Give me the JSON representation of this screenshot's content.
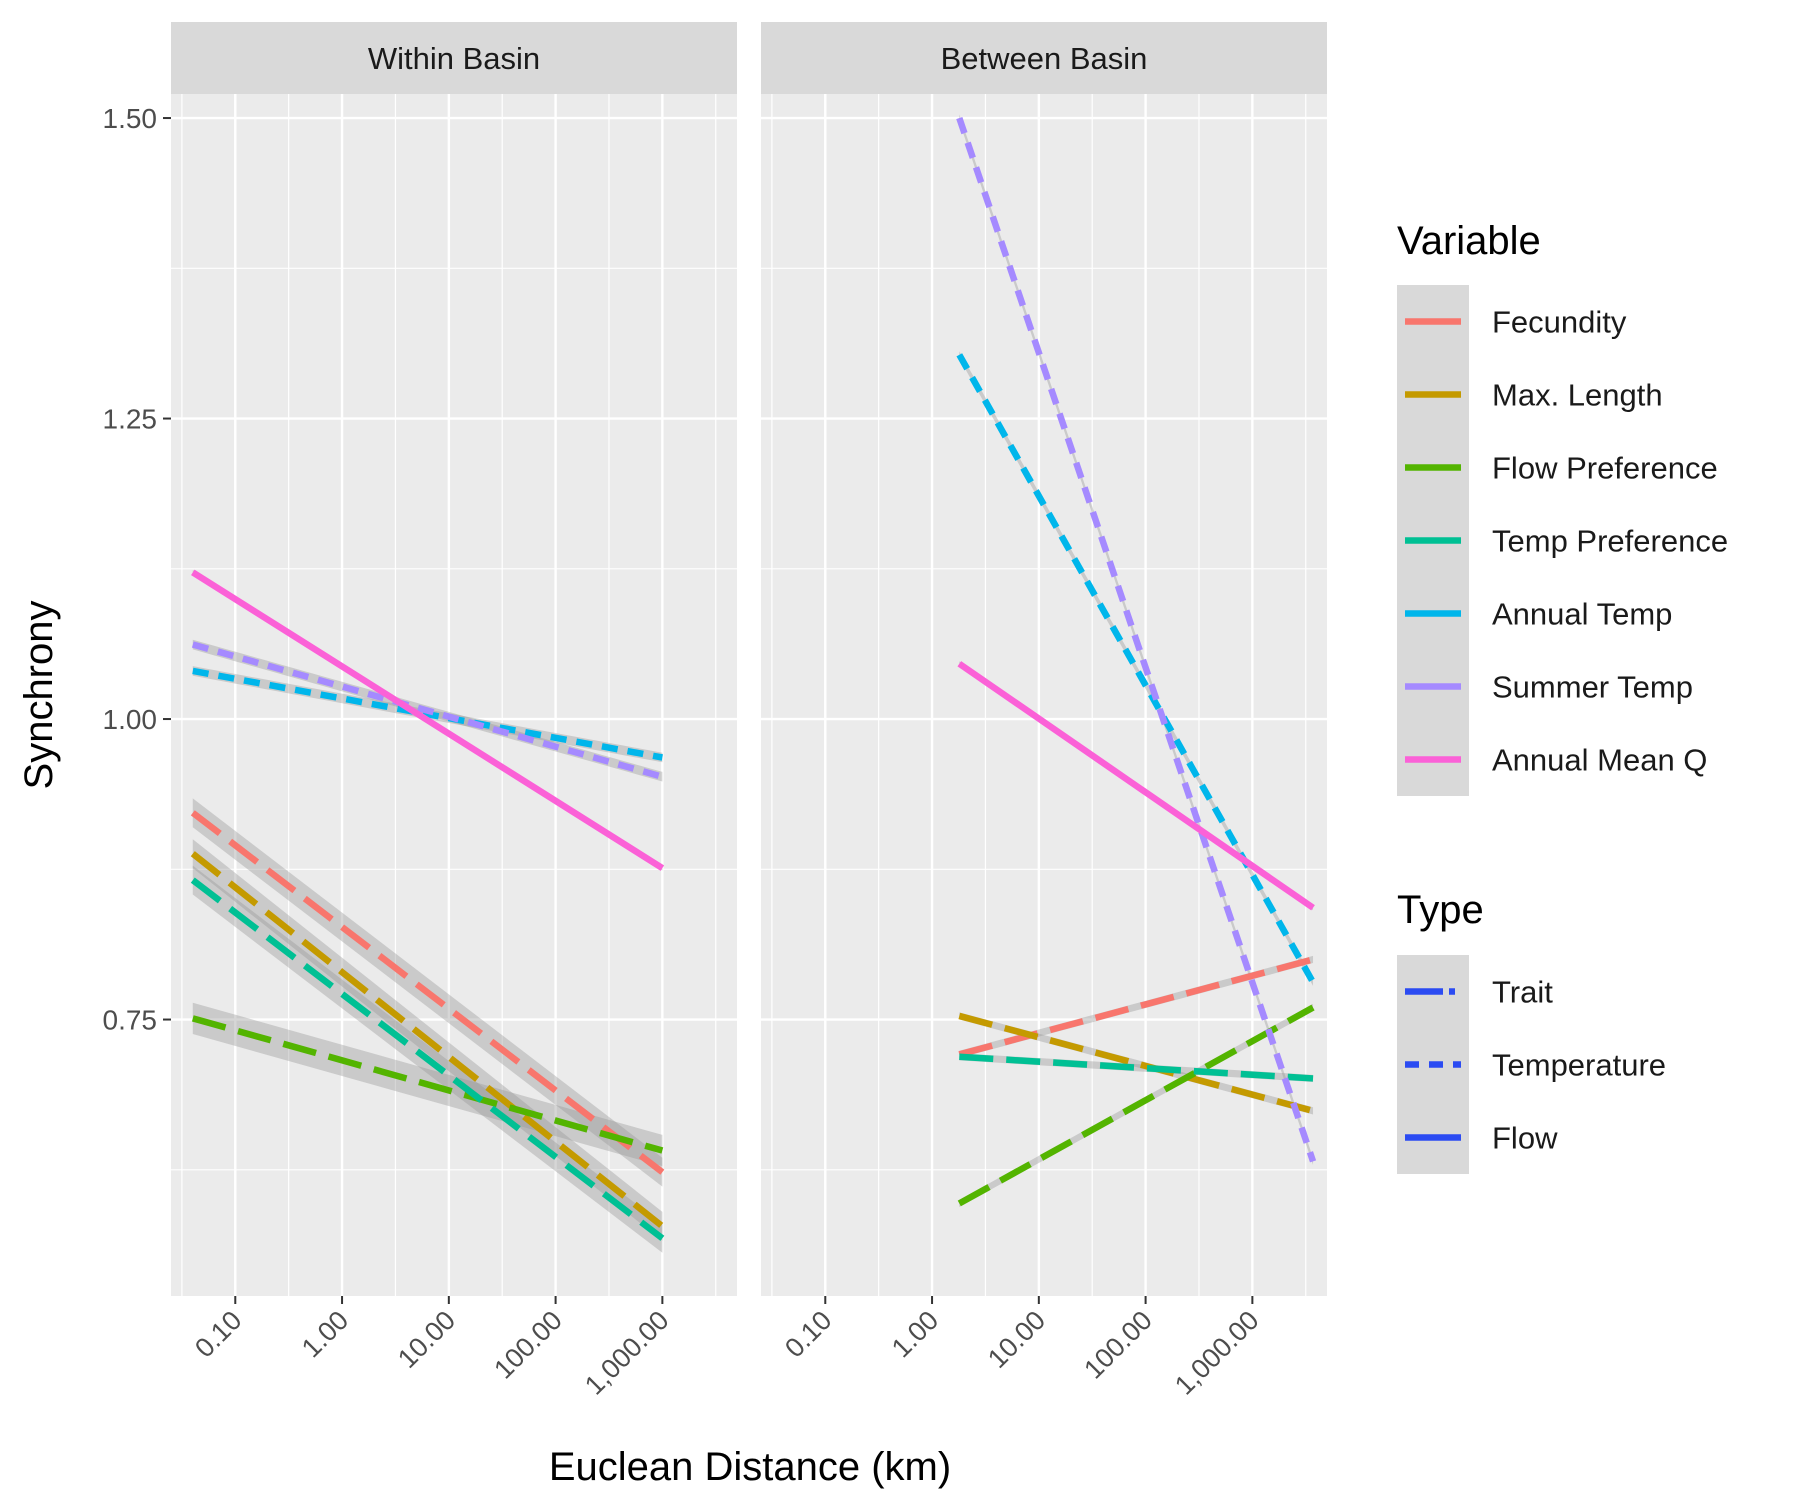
{
  "chart_data": {
    "type": "line",
    "title": "",
    "xlabel": "Euclean Distance (km)",
    "ylabel": "Synchrony",
    "x_scale": "log10",
    "x_ticks": [
      0.1,
      1,
      10,
      100,
      1000
    ],
    "x_tick_labels": [
      "0.10",
      "1.00",
      "10.00",
      "100.00",
      "1,000.00"
    ],
    "xlim": [
      0.025,
      5000
    ],
    "ylim": [
      0.52,
      1.52
    ],
    "y_ticks": [
      0.75,
      1.0,
      1.25,
      1.5
    ],
    "y_tick_labels": [
      "0.75",
      "1.00",
      "1.25",
      "1.50"
    ],
    "grid": true,
    "legend_position": "right",
    "legends": {
      "variable": {
        "title": "Variable",
        "items": [
          {
            "label": "Fecundity",
            "color": "#F8766D"
          },
          {
            "label": "Max. Length",
            "color": "#C49A00"
          },
          {
            "label": "Flow Preference",
            "color": "#53B400"
          },
          {
            "label": "Temp Preference",
            "color": "#00C094"
          },
          {
            "label": "Annual Temp",
            "color": "#00B6EB"
          },
          {
            "label": "Summer Temp",
            "color": "#A58AFF"
          },
          {
            "label": "Annual Mean Q",
            "color": "#FB61D7"
          }
        ]
      },
      "type": {
        "title": "Type",
        "items": [
          {
            "label": "Trait",
            "dash": "longdash",
            "color": "#2B4BF2"
          },
          {
            "label": "Temperature",
            "dash": "dashed",
            "color": "#2B4BF2"
          },
          {
            "label": "Flow",
            "dash": "solid",
            "color": "#2B4BF2"
          }
        ]
      }
    },
    "panels": [
      {
        "title": "Within Basin",
        "series": [
          {
            "name": "Fecundity",
            "type": "Trait",
            "x": [
              0.04,
              1000
            ],
            "y": [
              0.922,
              0.623
            ],
            "ribbon": 0.012
          },
          {
            "name": "Max. Length",
            "type": "Trait",
            "x": [
              0.04,
              1000
            ],
            "y": [
              0.888,
              0.578
            ],
            "ribbon": 0.012
          },
          {
            "name": "Flow Preference",
            "type": "Trait",
            "x": [
              0.04,
              1000
            ],
            "y": [
              0.751,
              0.641
            ],
            "ribbon": 0.013
          },
          {
            "name": "Temp Preference",
            "type": "Trait",
            "x": [
              0.04,
              1000
            ],
            "y": [
              0.866,
              0.568
            ],
            "ribbon": 0.012
          },
          {
            "name": "Annual Temp",
            "type": "Temperature",
            "x": [
              0.04,
              1000
            ],
            "y": [
              1.04,
              0.968
            ],
            "ribbon": 0.004
          },
          {
            "name": "Summer Temp",
            "type": "Temperature",
            "x": [
              0.04,
              1000
            ],
            "y": [
              1.062,
              0.952
            ],
            "ribbon": 0.004
          },
          {
            "name": "Annual Mean Q",
            "type": "Flow",
            "x": [
              0.04,
              1000
            ],
            "y": [
              1.122,
              0.876
            ],
            "ribbon": 0.002
          }
        ]
      },
      {
        "title": "Between Basin",
        "series": [
          {
            "name": "Fecundity",
            "type": "Trait",
            "x": [
              1.8,
              3700
            ],
            "y": [
              0.721,
              0.8
            ],
            "ribbon": 0.003
          },
          {
            "name": "Max. Length",
            "type": "Trait",
            "x": [
              1.8,
              3700
            ],
            "y": [
              0.753,
              0.674
            ],
            "ribbon": 0.003
          },
          {
            "name": "Flow Preference",
            "type": "Trait",
            "x": [
              1.8,
              3700
            ],
            "y": [
              0.597,
              0.76
            ],
            "ribbon": 0.003
          },
          {
            "name": "Temp Preference",
            "type": "Trait",
            "x": [
              1.8,
              3700
            ],
            "y": [
              0.719,
              0.701
            ],
            "ribbon": 0.003
          },
          {
            "name": "Annual Temp",
            "type": "Temperature",
            "x": [
              1.8,
              3700
            ],
            "y": [
              1.303,
              0.781
            ],
            "ribbon": 0.003
          },
          {
            "name": "Summer Temp",
            "type": "Temperature",
            "x": [
              1.8,
              3700
            ],
            "y": [
              1.5,
              0.632
            ],
            "ribbon": 0.003
          },
          {
            "name": "Annual Mean Q",
            "type": "Flow",
            "x": [
              1.8,
              3700
            ],
            "y": [
              1.046,
              0.843
            ],
            "ribbon": 0.002
          }
        ]
      }
    ]
  }
}
